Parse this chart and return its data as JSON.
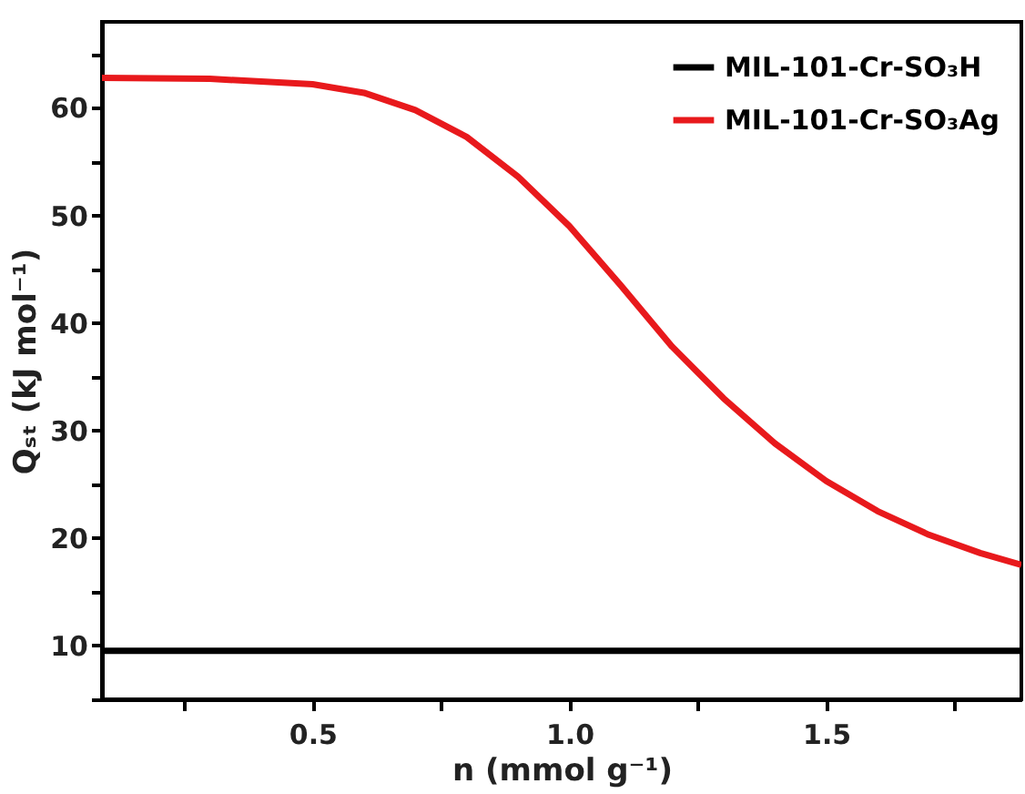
{
  "chart_data": {
    "type": "line",
    "xlabel": "n (mmol g⁻¹)",
    "ylabel": "Qₛₜ (kJ mol⁻¹)",
    "xlim": [
      0.09,
      1.88
    ],
    "ylim": [
      5,
      68
    ],
    "xticks": [
      {
        "value": 0.25,
        "label": null
      },
      0.5,
      {
        "value": 0.75,
        "label": null
      },
      {
        "value": 1.0,
        "label": "1.0"
      },
      {
        "value": 1.25,
        "label": null
      },
      1.5,
      {
        "value": 1.75,
        "label": null
      }
    ],
    "yticks": [
      {
        "value": 5,
        "label": null
      },
      10,
      {
        "value": 15,
        "label": null
      },
      20,
      {
        "value": 25,
        "label": null
      },
      30,
      {
        "value": 35,
        "label": null
      },
      40,
      {
        "value": 45,
        "label": null
      },
      50,
      {
        "value": 55,
        "label": null
      },
      60,
      {
        "value": 65,
        "label": null
      }
    ],
    "grid": false,
    "legend": "top right",
    "line_style": "solid",
    "marker": "none",
    "series": [
      {
        "name": "MIL-101-Cr-SO₃H",
        "color": "#000000",
        "x": [
          0.09,
          1.88
        ],
        "values": [
          9.5,
          9.5
        ]
      },
      {
        "name": "MIL-101-Cr-SO₃Ag",
        "color": "#e8191c",
        "x": [
          0.09,
          0.3,
          0.5,
          0.6,
          0.7,
          0.8,
          0.9,
          1.0,
          1.1,
          1.2,
          1.3,
          1.4,
          1.5,
          1.6,
          1.7,
          1.8,
          1.88
        ],
        "values": [
          62.8,
          62.7,
          62.2,
          61.4,
          59.8,
          57.3,
          53.6,
          49.0,
          43.5,
          37.8,
          33.0,
          28.8,
          25.3,
          22.5,
          20.3,
          18.6,
          17.5
        ]
      }
    ]
  }
}
